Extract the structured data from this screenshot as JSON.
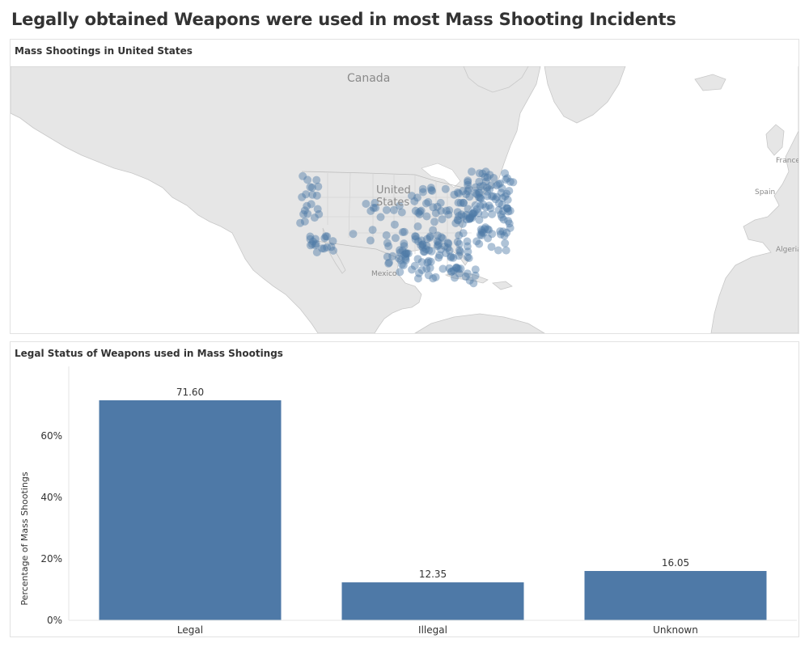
{
  "dashboard": {
    "title": "Legally obtained Weapons were used in most Mass Shooting Incidents"
  },
  "map": {
    "title": "Mass Shootings in United States",
    "place_labels": {
      "canada": "Canada",
      "united_states_line1": "United",
      "united_states_line2": "States",
      "mexico": "Mexico",
      "france": "France",
      "spain": "Spain",
      "algeria": "Algeria"
    },
    "colors": {
      "land": "#e6e6e6",
      "ocean": "#ffffff",
      "border": "#bdbdbd",
      "point": "#4e79a7"
    }
  },
  "chart": {
    "title": "Legal Status of Weapons used in Mass Shootings"
  },
  "chart_data": {
    "type": "bar",
    "categories": [
      "Legal",
      "Illegal",
      "Unknown"
    ],
    "values": [
      71.6,
      12.35,
      16.05
    ],
    "value_labels": [
      "71.60",
      "12.35",
      "16.05"
    ],
    "ylabel": "Percentage of Mass Shootings",
    "yticks": [
      0,
      20,
      40,
      60
    ],
    "ytick_labels": [
      "0%",
      "20%",
      "40%",
      "60%"
    ],
    "ylim": [
      0,
      80
    ],
    "color": "#4e79a7",
    "grid": false
  }
}
